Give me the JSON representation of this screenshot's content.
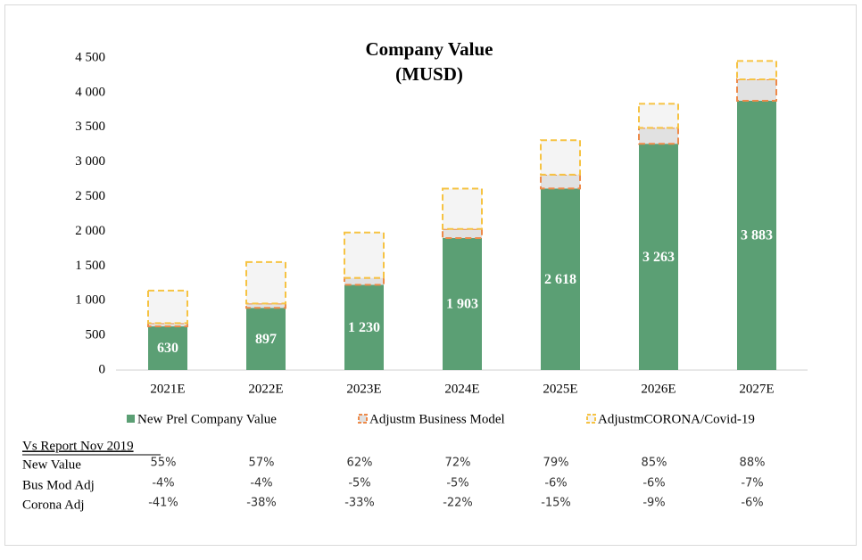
{
  "chart_data": {
    "type": "stacked_bar",
    "title": "Company Value",
    "subtitle": "(MUSD)",
    "categories": [
      "2021E",
      "2022E",
      "2023E",
      "2024E",
      "2025E",
      "2026E",
      "2027E"
    ],
    "series": [
      {
        "name": "New Prel Company Value",
        "color": "#5b9f74",
        "edge_color": "#5b9f74",
        "values": [
          630,
          897,
          1230,
          1903,
          2618,
          3263,
          3883
        ],
        "value_labels": [
          "630",
          "897",
          "1 230",
          "1 903",
          "2 618",
          "3 263",
          "3 883"
        ]
      },
      {
        "name": "Adjustm Business Model",
        "color": "#e1e1e1",
        "edge_color": "#ee8a4a",
        "values": [
          46,
          63,
          99,
          132,
          199,
          230,
          309
        ]
      },
      {
        "name": "AdjustmCORONA/Covid-19",
        "color": "#f4f4f4",
        "edge_color": "#f6c343",
        "values": [
          470,
          598,
          655,
          581,
          497,
          346,
          265
        ]
      }
    ],
    "ylim": [
      0,
      4500
    ],
    "yticks": [
      0,
      500,
      {
        "value": 1000,
        "label": "1 000"
      },
      {
        "value": 1500,
        "label": "1 500"
      },
      {
        "value": 2000,
        "label": "2 000"
      },
      {
        "value": 2500,
        "label": "2 500"
      },
      {
        "value": 3000,
        "label": "3 000"
      },
      {
        "value": 3500,
        "label": "3 500"
      },
      {
        "value": 4000,
        "label": "4 000"
      },
      {
        "value": 4500,
        "label": "4 500"
      }
    ],
    "grid": false,
    "legend": "bottom"
  },
  "table": {
    "title": "Vs Report Nov 2019",
    "rows": [
      {
        "label": "New Value",
        "cells": [
          "55%",
          "57%",
          "62%",
          "72%",
          "79%",
          "85%",
          "88%"
        ]
      },
      {
        "label": "Bus Mod Adj",
        "cells": [
          "-4%",
          "-4%",
          "-5%",
          "-5%",
          "-6%",
          "-6%",
          "-7%"
        ]
      },
      {
        "label": "Corona Adj",
        "cells": [
          "-41%",
          "-38%",
          "-33%",
          "-22%",
          "-15%",
          "-9%",
          "-6%"
        ]
      }
    ]
  }
}
